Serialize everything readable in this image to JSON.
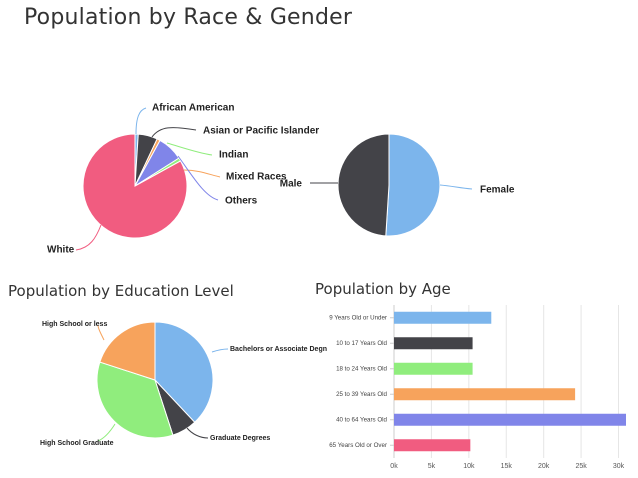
{
  "titles": {
    "race_gender": "Population by Race & Gender",
    "education": "Population by Education Level",
    "age": "Population by Age"
  },
  "chart_data": [
    {
      "type": "pie",
      "title": "Population by Race & Gender",
      "categories": [
        "African American",
        "Asian or Pacific Islander",
        "Indian",
        "Mixed Races",
        "Others",
        "White"
      ],
      "values": [
        1,
        6,
        1,
        8,
        1,
        83
      ],
      "colors": [
        "#7cb5ec",
        "#434348",
        "#f7a35c",
        "#8085e9",
        "#90ed7d",
        "#f15c80"
      ],
      "label_colors": [
        "#7cb5ec",
        "#434348",
        "#90ed7d",
        "#f7a35c",
        "#8085e9",
        "#f15c80"
      ]
    },
    {
      "type": "pie",
      "categories": [
        "Female",
        "Male"
      ],
      "values": [
        51,
        49
      ],
      "colors": [
        "#7cb5ec",
        "#434348"
      ]
    },
    {
      "type": "pie",
      "title": "Population by Education Level",
      "categories": [
        "Bachelors or Associate Degree",
        "Graduate Degrees",
        "High School Graduate",
        "High School or less"
      ],
      "display_labels": [
        "Bachelors or Associate Degn",
        "Graduate Degrees",
        "High School Graduate",
        "High School or less"
      ],
      "values": [
        38,
        7,
        35,
        20
      ],
      "colors": [
        "#7cb5ec",
        "#434348",
        "#90ed7d",
        "#f7a35c"
      ]
    },
    {
      "type": "bar",
      "orientation": "horizontal",
      "title": "Population by Age",
      "categories": [
        "9 Years Old or Under",
        "10 to 17 Years Old",
        "18 to 24 Years Old",
        "25 to 39 Years Old",
        "40 to 64 Years Old",
        "65 Years Old or Over"
      ],
      "values": [
        13000,
        10500,
        10500,
        24200,
        31000,
        10200
      ],
      "colors": [
        "#7cb5ec",
        "#434348",
        "#90ed7d",
        "#f7a35c",
        "#8085e9",
        "#f15c80"
      ],
      "xlim": [
        0,
        31000
      ],
      "x_ticks": [
        0,
        5000,
        10000,
        15000,
        20000,
        25000,
        30000
      ],
      "x_tick_labels": [
        "0k",
        "5k",
        "10k",
        "15k",
        "20k",
        "25k",
        "30k"
      ],
      "grid": true
    }
  ]
}
